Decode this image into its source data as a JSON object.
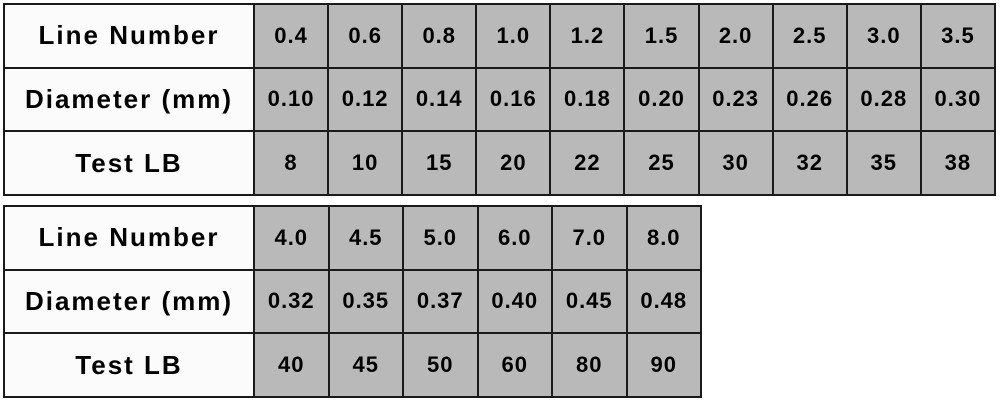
{
  "chart_data": [
    {
      "type": "table",
      "rows": [
        {
          "label": "Line Number",
          "values": [
            "0.4",
            "0.6",
            "0.8",
            "1.0",
            "1.2",
            "1.5",
            "2.0",
            "2.5",
            "3.0",
            "3.5"
          ]
        },
        {
          "label": "Diameter (mm)",
          "values": [
            "0.10",
            "0.12",
            "0.14",
            "0.16",
            "0.18",
            "0.20",
            "0.23",
            "0.26",
            "0.28",
            "0.30"
          ]
        },
        {
          "label": "Test LB",
          "values": [
            "8",
            "10",
            "15",
            "20",
            "22",
            "25",
            "30",
            "32",
            "35",
            "38"
          ]
        }
      ]
    },
    {
      "type": "table",
      "rows": [
        {
          "label": "Line Number",
          "values": [
            "4.0",
            "4.5",
            "5.0",
            "6.0",
            "7.0",
            "8.0"
          ]
        },
        {
          "label": "Diameter (mm)",
          "values": [
            "0.32",
            "0.35",
            "0.37",
            "0.40",
            "0.45",
            "0.48"
          ]
        },
        {
          "label": "Test LB",
          "values": [
            "40",
            "45",
            "50",
            "60",
            "80",
            "90"
          ]
        }
      ]
    }
  ],
  "colors": {
    "page_background": "#ffffff",
    "header_cell_background": "#fbfbfb",
    "data_cell_background": "#b9b9b9",
    "border": "#1a1a1a",
    "text": "#000000"
  }
}
